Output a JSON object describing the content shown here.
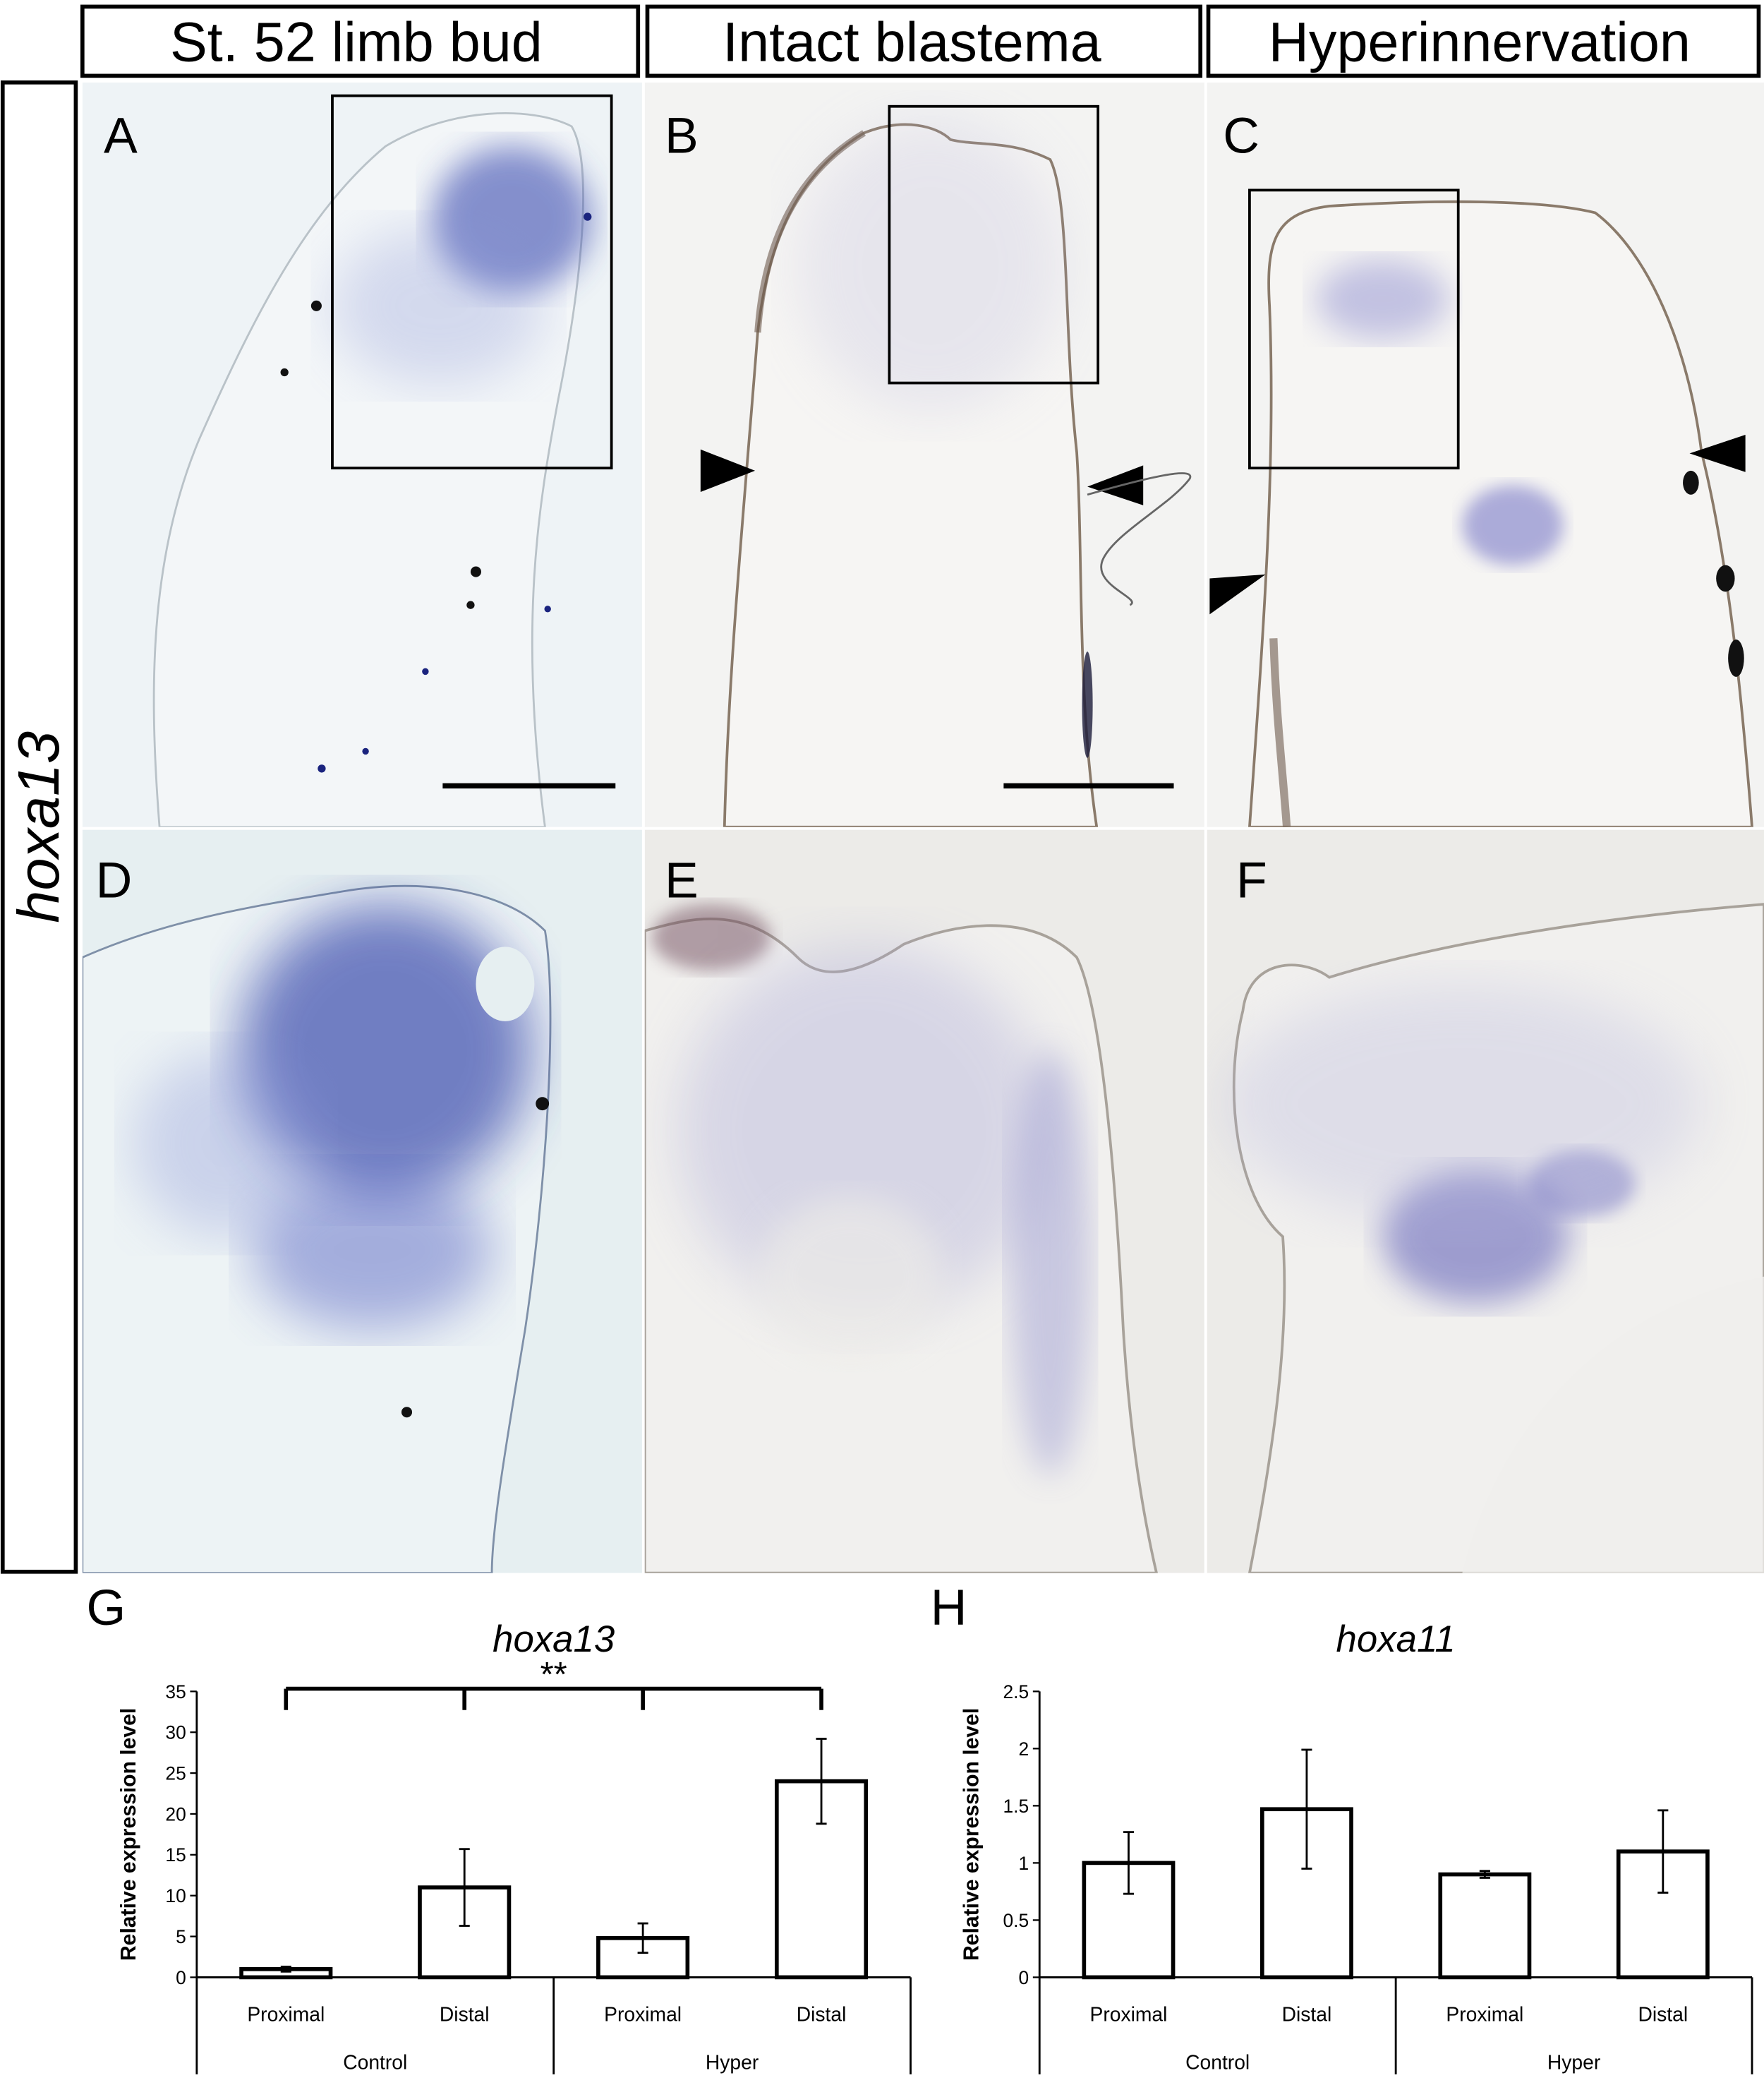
{
  "columns": [
    "St. 52 limb bud",
    "Intact blastema",
    "Hyperinnervation"
  ],
  "row_label": "hoxa13",
  "panels": [
    "A",
    "B",
    "C",
    "D",
    "E",
    "F"
  ],
  "chart_data": [
    {
      "type": "bar",
      "panel": "G",
      "title": "hoxa13",
      "y_label": "Relative expression level",
      "categories": [
        "Proximal",
        "Distal",
        "Proximal",
        "Distal"
      ],
      "groups": [
        "Control",
        "Hyper"
      ],
      "values": [
        1.0,
        11,
        4.8,
        24
      ],
      "errors": [
        0.3,
        4.7,
        1.8,
        5.2
      ],
      "color": "#ffffff",
      "ylim": [
        0,
        35
      ],
      "yticks": [
        0,
        5,
        10,
        15,
        20,
        25,
        30,
        35
      ],
      "annotation": "**"
    },
    {
      "type": "bar",
      "panel": "H",
      "title": "hoxa11",
      "y_label": "Relative expression level",
      "categories": [
        "Proximal",
        "Distal",
        "Proximal",
        "Distal"
      ],
      "groups": [
        "Control",
        "Hyper"
      ],
      "values": [
        1.0,
        1.47,
        0.9,
        1.1
      ],
      "errors": [
        0.27,
        0.52,
        0.03,
        0.36
      ],
      "color": "#ffffff",
      "ylim": [
        0,
        2.5
      ],
      "yticks": [
        0,
        0.5,
        1,
        1.5,
        2,
        2.5
      ]
    }
  ]
}
